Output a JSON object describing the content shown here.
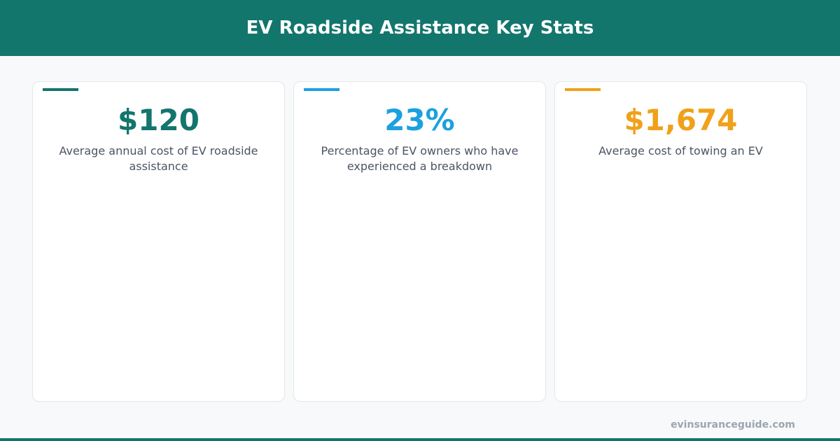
{
  "header": {
    "title": "EV Roadside Assistance Key Stats"
  },
  "cards": [
    {
      "value": "$120",
      "description": "Average annual cost of EV roadside assistance",
      "color": "#13756d"
    },
    {
      "value": "23%",
      "description": "Percentage of EV owners who have experienced a breakdown",
      "color": "#1ba1de"
    },
    {
      "value": "$1,674",
      "description": "Average cost of towing an EV",
      "color": "#f0a11a"
    }
  ],
  "footer": {
    "source": "evinsuranceguide.com"
  }
}
